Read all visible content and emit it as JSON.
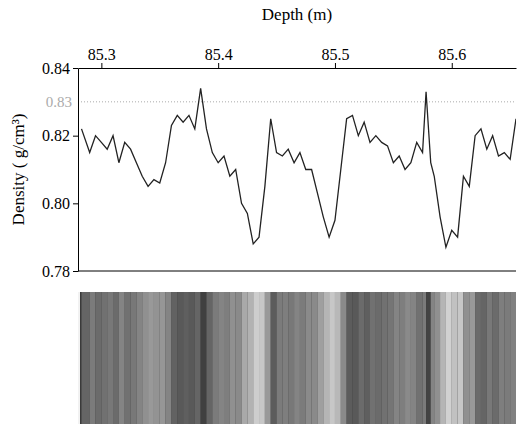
{
  "chart_data": {
    "type": "line",
    "x_label": "Depth (m)",
    "y_label": "Density ( g/cm³)",
    "color": "#222222",
    "xlim": [
      85.28,
      85.655
    ],
    "xticks": [
      85.3,
      85.4,
      85.5,
      85.6
    ],
    "ylim": [
      0.78,
      0.84
    ],
    "yticks": [
      0.78,
      {
        "value": 0.8,
        "label": "0.80"
      },
      0.82,
      0.84
    ],
    "reference_line": {
      "value": 0.83,
      "label": "0.83",
      "color": "#aaaaaa",
      "line_style": "dotted"
    },
    "x": [
      85.283,
      85.29,
      85.295,
      85.3,
      85.305,
      85.31,
      85.315,
      85.32,
      85.325,
      85.33,
      85.335,
      85.34,
      85.345,
      85.35,
      85.355,
      85.36,
      85.365,
      85.37,
      85.375,
      85.38,
      85.385,
      85.39,
      85.395,
      85.4,
      85.405,
      85.41,
      85.415,
      85.42,
      85.425,
      85.43,
      85.435,
      85.44,
      85.445,
      85.45,
      85.455,
      85.46,
      85.465,
      85.47,
      85.475,
      85.48,
      85.485,
      85.49,
      85.495,
      85.5,
      85.505,
      85.51,
      85.515,
      85.52,
      85.525,
      85.53,
      85.535,
      85.54,
      85.545,
      85.55,
      85.555,
      85.56,
      85.565,
      85.57,
      85.575,
      85.578,
      85.582,
      85.585,
      85.59,
      85.595,
      85.6,
      85.605,
      85.61,
      85.615,
      85.62,
      85.625,
      85.63,
      85.635,
      85.64,
      85.645,
      85.65,
      85.655
    ],
    "values": [
      0.822,
      0.815,
      0.82,
      0.818,
      0.816,
      0.82,
      0.812,
      0.818,
      0.816,
      0.812,
      0.808,
      0.805,
      0.807,
      0.806,
      0.812,
      0.823,
      0.826,
      0.824,
      0.826,
      0.822,
      0.834,
      0.822,
      0.815,
      0.812,
      0.814,
      0.808,
      0.81,
      0.8,
      0.797,
      0.788,
      0.79,
      0.805,
      0.825,
      0.815,
      0.814,
      0.816,
      0.812,
      0.815,
      0.81,
      0.81,
      0.803,
      0.796,
      0.79,
      0.795,
      0.81,
      0.825,
      0.826,
      0.82,
      0.824,
      0.818,
      0.82,
      0.818,
      0.817,
      0.812,
      0.814,
      0.81,
      0.812,
      0.818,
      0.815,
      0.833,
      0.812,
      0.808,
      0.796,
      0.787,
      0.792,
      0.79,
      0.808,
      0.805,
      0.82,
      0.822,
      0.816,
      0.82,
      0.814,
      0.815,
      0.813,
      0.825
    ]
  }
}
